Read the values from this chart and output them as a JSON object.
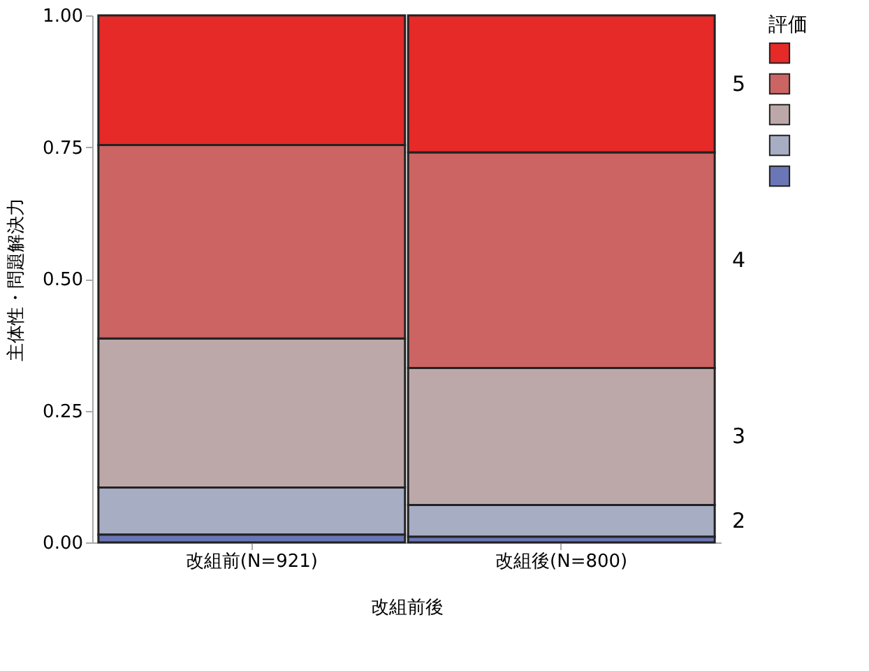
{
  "chart_data": {
    "type": "bar",
    "stacked": true,
    "xlabel": "改組前後",
    "ylabel": "主体性・問題解決力",
    "legend_title": "評価",
    "legend": "right",
    "grid": false,
    "categories": [
      "改組前(N=921)",
      "改組後(N=800)"
    ],
    "ylim": [
      0,
      1
    ],
    "yticks": [
      {
        "value": 0,
        "label": "0.00"
      },
      {
        "value": 0.25,
        "label": "0.25"
      },
      {
        "value": 0.5,
        "label": "0.50"
      },
      {
        "value": 0.75,
        "label": "0.75"
      },
      {
        "value": 1,
        "label": "1.00"
      }
    ],
    "series": [
      {
        "color": "#6a76b5",
        "values": [
          0.015,
          0.011
        ]
      },
      {
        "name": "2",
        "color": "#a7adc3",
        "values": [
          0.089,
          0.06
        ]
      },
      {
        "name": "3",
        "color": "#bda8a9",
        "values": [
          0.283,
          0.26
        ]
      },
      {
        "name": "4",
        "color": "#cc6464",
        "values": [
          0.367,
          0.409
        ]
      },
      {
        "name": "5",
        "color": "#e52a28",
        "values": [
          0.246,
          0.26
        ]
      }
    ]
  }
}
